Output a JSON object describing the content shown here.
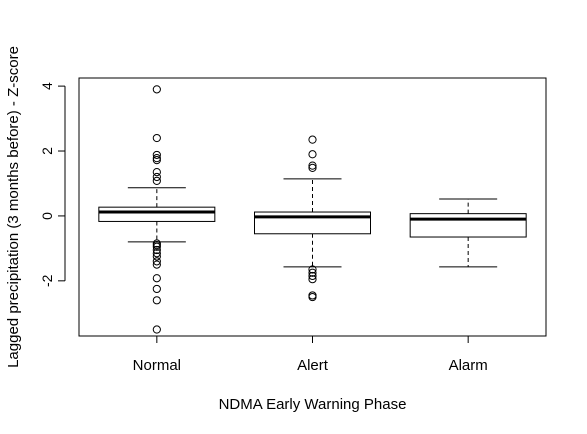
{
  "chart_data": {
    "type": "boxplot",
    "title": "",
    "xlabel": "NDMA Early Warning Phase",
    "ylabel": "Lagged precipitation (3 months before) - Z-score",
    "categories": [
      "Normal",
      "Alert",
      "Alarm"
    ],
    "ylim": [
      -3.7,
      4.25
    ],
    "yticks": [
      -2,
      0,
      2,
      4
    ],
    "ytick_labels": [
      "-2",
      "0",
      "2",
      "4"
    ],
    "grid": false,
    "boxes": [
      {
        "category": "Normal",
        "whisker_low": -0.8,
        "q1": -0.17,
        "median": 0.12,
        "q3": 0.27,
        "whisker_high": 0.87,
        "outliers": [
          3.9,
          2.4,
          1.88,
          1.78,
          1.72,
          1.35,
          1.2,
          1.08,
          -0.85,
          -0.9,
          -0.95,
          -1.05,
          -1.15,
          -1.25,
          -1.4,
          -1.5,
          -1.92,
          -2.25,
          -2.6,
          -3.5
        ]
      },
      {
        "category": "Alert",
        "whisker_low": -1.57,
        "q1": -0.55,
        "median": -0.03,
        "q3": 0.12,
        "whisker_high": 1.14,
        "outliers": [
          2.35,
          1.9,
          1.55,
          1.48,
          -1.65,
          -1.75,
          -1.85,
          -1.95,
          -2.45,
          -2.5
        ]
      },
      {
        "category": "Alarm",
        "whisker_low": -1.57,
        "q1": -0.65,
        "median": -0.1,
        "q3": 0.07,
        "whisker_high": 0.52,
        "outliers": []
      }
    ]
  }
}
